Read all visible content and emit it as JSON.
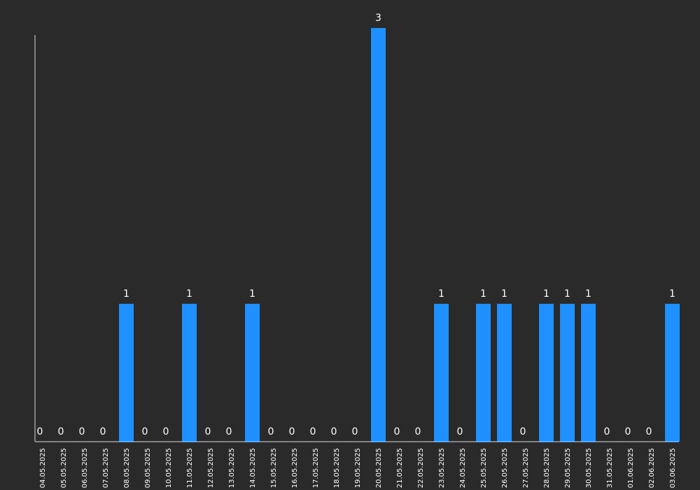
{
  "chart_data": {
    "type": "bar",
    "title": "",
    "xlabel": "",
    "ylabel": "",
    "grid": false,
    "ylim": [
      0,
      3
    ],
    "colors": {
      "background": "#2a2a2a",
      "bar": "#1e90ff",
      "text": "#ffffff",
      "axis": "#d9d9d9"
    },
    "categories": [
      "04.05.2025",
      "05.05.2025",
      "06.05.2025",
      "07.05.2025",
      "08.05.2025",
      "09.05.2025",
      "10.05.2025",
      "11.05.2025",
      "12.05.2025",
      "13.05.2025",
      "14.05.2025",
      "15.05.2025",
      "16.05.2025",
      "17.05.2025",
      "18.05.2025",
      "19.05.2025",
      "20.05.2025",
      "21.05.2025",
      "22.05.2025",
      "23.05.2025",
      "24.05.2025",
      "25.05.2025",
      "26.05.2025",
      "27.05.2025",
      "28.05.2025",
      "29.05.2025",
      "30.05.2025",
      "31.05.2025",
      "01.06.2025",
      "02.06.2025",
      "03.06.2025"
    ],
    "values": [
      0,
      0,
      0,
      0,
      1,
      0,
      0,
      1,
      0,
      0,
      1,
      0,
      0,
      0,
      0,
      0,
      3,
      0,
      0,
      1,
      0,
      1,
      1,
      0,
      1,
      1,
      1,
      0,
      0,
      0,
      1
    ]
  }
}
